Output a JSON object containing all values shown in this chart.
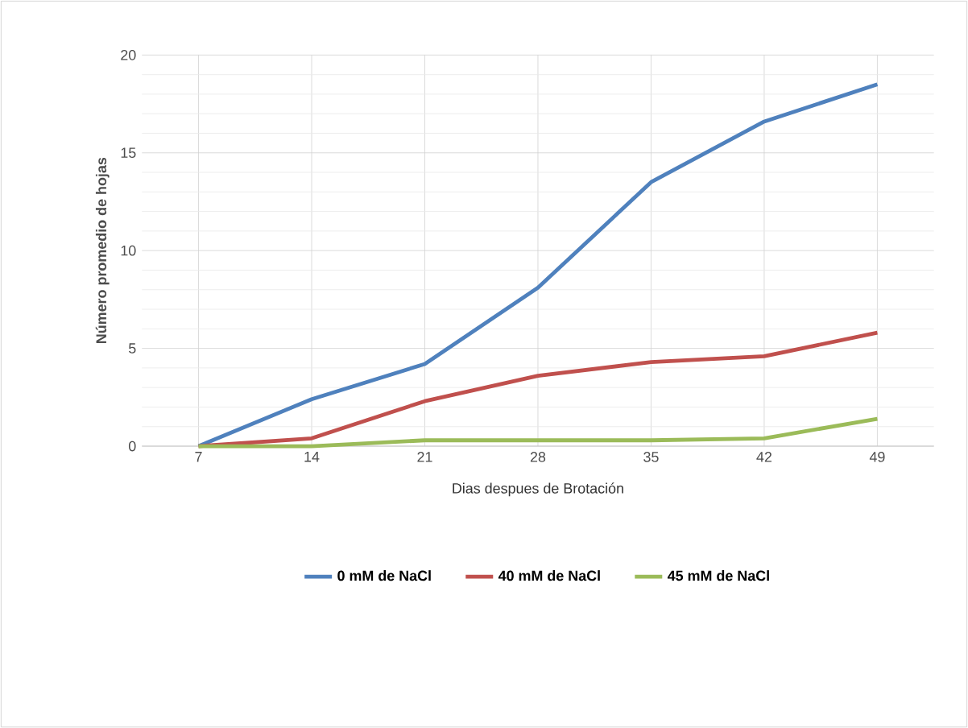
{
  "chart_data": {
    "type": "line",
    "xlabel": "Dias despues de Brotación",
    "ylabel": "Número promedio  de hojas",
    "categories": [
      "7",
      "14",
      "21",
      "28",
      "35",
      "42",
      "49"
    ],
    "series": [
      {
        "name": "0 mM de NaCl",
        "color": "#4f81bd",
        "values": [
          0,
          2.4,
          4.2,
          8.1,
          13.5,
          16.6,
          18.5
        ]
      },
      {
        "name": "40 mM de NaCl",
        "color": "#c0504d",
        "values": [
          0,
          0.4,
          2.3,
          3.6,
          4.3,
          4.6,
          5.8
        ]
      },
      {
        "name": "45 mM de NaCl",
        "color": "#9bbb59",
        "values": [
          0,
          0,
          0.3,
          0.3,
          0.3,
          0.4,
          1.4
        ]
      }
    ],
    "ylim": [
      0,
      20
    ],
    "yticks": [
      0,
      5,
      10,
      15,
      20
    ],
    "grid": true,
    "legend": "bottom",
    "marker": "none",
    "line_style": "solid"
  }
}
